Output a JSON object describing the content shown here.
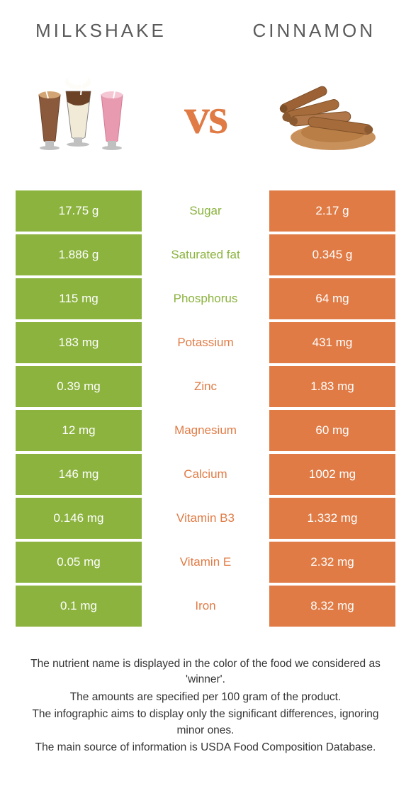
{
  "header": {
    "left_title": "Milkshake",
    "right_title": "Cinnamon"
  },
  "vs": "vs",
  "colors": {
    "left": "#8bb33e",
    "right": "#e07b45",
    "mid_bg": "#ffffff"
  },
  "rows": [
    {
      "left": "17.75 g",
      "label": "Sugar",
      "right": "2.17 g",
      "winner": "left"
    },
    {
      "left": "1.886 g",
      "label": "Saturated fat",
      "right": "0.345 g",
      "winner": "left"
    },
    {
      "left": "115 mg",
      "label": "Phosphorus",
      "right": "64 mg",
      "winner": "left"
    },
    {
      "left": "183 mg",
      "label": "Potassium",
      "right": "431 mg",
      "winner": "right"
    },
    {
      "left": "0.39 mg",
      "label": "Zinc",
      "right": "1.83 mg",
      "winner": "right"
    },
    {
      "left": "12 mg",
      "label": "Magnesium",
      "right": "60 mg",
      "winner": "right"
    },
    {
      "left": "146 mg",
      "label": "Calcium",
      "right": "1002 mg",
      "winner": "right"
    },
    {
      "left": "0.146 mg",
      "label": "Vitamin B3",
      "right": "1.332 mg",
      "winner": "right"
    },
    {
      "left": "0.05 mg",
      "label": "Vitamin E",
      "right": "2.32 mg",
      "winner": "right"
    },
    {
      "left": "0.1 mg",
      "label": "Iron",
      "right": "8.32 mg",
      "winner": "right"
    }
  ],
  "footnotes": [
    "The nutrient name is displayed in the color of the food we considered as 'winner'.",
    "The amounts are specified per 100 gram of the product.",
    "The infographic aims to display only the significant differences, ignoring minor ones.",
    "The main source of information is USDA Food Composition Database."
  ]
}
